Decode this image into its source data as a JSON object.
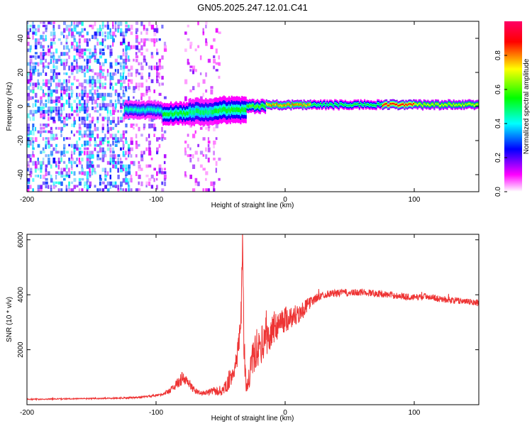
{
  "title": "GN05.2025.247.12.01.C41",
  "chart_data": [
    {
      "type": "heatmap",
      "id": "spectrogram",
      "xlabel": "Height of straight line (km)",
      "ylabel": "Frequency (Hz)",
      "xlim": [
        -200,
        150
      ],
      "ylim": [
        -50,
        50
      ],
      "xticks": [
        -200,
        -100,
        0,
        100
      ],
      "xtick_labels": [
        "-200",
        "-100",
        "0",
        "100"
      ],
      "yticks": [
        -40,
        -20,
        0,
        20,
        40
      ],
      "ytick_labels": [
        "-40",
        "-20",
        "0",
        "20",
        "40"
      ],
      "colorbar": {
        "label": "Normalized spectral amplitude",
        "range": [
          0,
          1
        ],
        "ticks": [
          0.0,
          0.2,
          0.4,
          0.6,
          0.8
        ],
        "tick_labels": [
          "0.0",
          "0.2",
          "0.4",
          "0.6",
          "0.8"
        ],
        "colors": [
          "#ffffff",
          "#ff00ff",
          "#0000ff",
          "#00ffff",
          "#00ff00",
          "#ffff00",
          "#ff0000"
        ]
      },
      "noise_regions": [
        {
          "x": [
            -200,
            -120
          ],
          "density": 0.55,
          "amplitude": 0.35
        },
        {
          "x": [
            -120,
            -93
          ],
          "density": 0.3,
          "amplitude": 0.2
        },
        {
          "x": [
            -78,
            -50
          ],
          "density": 0.18,
          "amplitude": 0.15
        }
      ],
      "signal_segments": [
        {
          "x": [
            -125,
            -95
          ],
          "freq": -2,
          "width": 4,
          "amplitude": 0.45
        },
        {
          "x": [
            -95,
            -75
          ],
          "freq": -4,
          "width": 5,
          "amplitude": 0.55
        },
        {
          "x": [
            -75,
            -55
          ],
          "freq": -3,
          "width": 6,
          "amplitude": 0.5
        },
        {
          "x": [
            -55,
            -30
          ],
          "freq": -2,
          "width": 6,
          "amplitude": 0.55
        },
        {
          "x": [
            -30,
            -15
          ],
          "freq": 0,
          "width": 3,
          "amplitude": 0.6
        },
        {
          "x": [
            -15,
            20
          ],
          "freq": 1,
          "width": 2,
          "amplitude": 0.8
        },
        {
          "x": [
            20,
            75
          ],
          "freq": 1,
          "width": 2,
          "amplitude": 0.55
        },
        {
          "x": [
            75,
            100
          ],
          "freq": 1,
          "width": 2,
          "amplitude": 0.95
        },
        {
          "x": [
            100,
            150
          ],
          "freq": 1,
          "width": 2,
          "amplitude": 0.7
        }
      ]
    },
    {
      "type": "line",
      "id": "snr",
      "xlabel": "Height of straight line (km)",
      "ylabel": "SNR (10 * v/v)",
      "xlim": [
        -200,
        150
      ],
      "ylim": [
        0,
        6200
      ],
      "xticks": [
        -200,
        -100,
        0,
        100
      ],
      "xtick_labels": [
        "-200",
        "-100",
        "0",
        "100"
      ],
      "yticks": [
        2000,
        4000,
        6000
      ],
      "ytick_labels": [
        "2000",
        "4000",
        "6000"
      ],
      "series": [
        {
          "name": "SNR",
          "color": "#ee3333",
          "x": [
            -200,
            -190,
            -180,
            -170,
            -160,
            -150,
            -140,
            -130,
            -120,
            -110,
            -100,
            -95,
            -90,
            -85,
            -80,
            -75,
            -70,
            -65,
            -60,
            -55,
            -50,
            -45,
            -40,
            -36,
            -34,
            -33,
            -32,
            -31,
            -30,
            -28,
            -25,
            -22,
            -18,
            -15,
            -12,
            -10,
            -7,
            -4,
            0,
            5,
            10,
            15,
            20,
            25,
            30,
            35,
            40,
            45,
            50,
            60,
            70,
            80,
            90,
            100,
            110,
            120,
            130,
            140,
            150
          ],
          "y": [
            200,
            200,
            210,
            210,
            220,
            220,
            230,
            240,
            250,
            280,
            330,
            380,
            500,
            700,
            950,
            800,
            500,
            420,
            450,
            500,
            450,
            700,
            1200,
            1900,
            3500,
            6100,
            2600,
            1200,
            600,
            900,
            1700,
            1900,
            2200,
            2500,
            2400,
            2700,
            2900,
            3000,
            3100,
            3200,
            3300,
            3500,
            3750,
            3900,
            4000,
            4050,
            4050,
            4100,
            4050,
            4100,
            4050,
            4000,
            3950,
            3900,
            3950,
            3850,
            3800,
            3750,
            3700
          ],
          "noise": [
            20,
            20,
            20,
            20,
            20,
            25,
            25,
            30,
            30,
            30,
            40,
            50,
            100,
            150,
            250,
            200,
            100,
            80,
            100,
            150,
            150,
            250,
            400,
            600,
            800,
            300,
            1000,
            400,
            300,
            500,
            600,
            600,
            700,
            700,
            600,
            600,
            600,
            500,
            500,
            400,
            400,
            300,
            200,
            150,
            130,
            130,
            130,
            130,
            130,
            130,
            130,
            120,
            120,
            120,
            120,
            120,
            120,
            120,
            120
          ]
        }
      ]
    }
  ]
}
